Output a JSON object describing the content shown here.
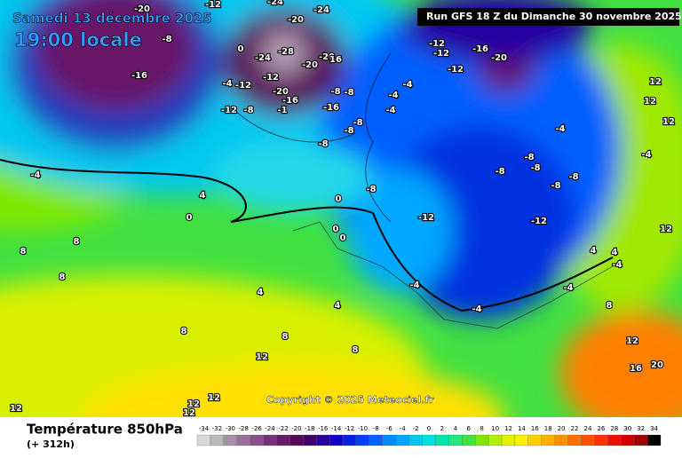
{
  "header": {
    "date": "Samedi 13 décembre 2025",
    "time": "19:00 locale",
    "run": "Run GFS 18 Z du Dimanche 30 novembre 2025"
  },
  "copyright": "Copyright © 2025 Meteociel.fr",
  "footer": {
    "title": "Température 850hPa",
    "lead": "(+ 312h)"
  },
  "map": {
    "labels": [
      -20,
      -12,
      -24,
      -20,
      -24,
      -8,
      -16,
      0,
      -24,
      -28,
      -20,
      -20,
      16,
      -12,
      -20,
      -16,
      -12,
      -4,
      -12,
      -8,
      -1,
      -16,
      -8,
      -8,
      -4,
      -4,
      -8,
      -8,
      -8,
      -4,
      -12,
      -12,
      -16,
      -20,
      -12,
      -4,
      4,
      0,
      0,
      0,
      0,
      -8,
      -12,
      -12,
      -8,
      -8,
      -8,
      -8,
      -8,
      -4,
      -4,
      12,
      12,
      12,
      4,
      -4,
      -4,
      4,
      4,
      -4,
      8,
      8,
      8,
      8,
      8,
      8,
      8,
      12,
      12,
      16,
      20,
      12,
      12,
      12,
      12,
      12,
      -4,
      4
    ]
  },
  "legend": {
    "values": [
      -34,
      -32,
      -30,
      -28,
      -26,
      -24,
      -22,
      -20,
      -18,
      -16,
      -14,
      -12,
      -10,
      -8,
      -6,
      -4,
      -2,
      0,
      2,
      4,
      6,
      8,
      10,
      12,
      14,
      16,
      18,
      20,
      22,
      24,
      26,
      28,
      30,
      32,
      34
    ],
    "colors": [
      "#d8d8d8",
      "#b8b8b8",
      "#a890a8",
      "#987098",
      "#885088",
      "#783078",
      "#681868",
      "#580858",
      "#400070",
      "#2800a0",
      "#1000c8",
      "#0020e0",
      "#0040f8",
      "#0060ff",
      "#0088ff",
      "#00a8ff",
      "#00c8f0",
      "#00e0e0",
      "#00e8b0",
      "#20e880",
      "#40e040",
      "#80e800",
      "#b0f000",
      "#e0f000",
      "#fff000",
      "#ffd000",
      "#ffb000",
      "#ff9000",
      "#ff7000",
      "#ff5000",
      "#ff3000",
      "#f01000",
      "#d00000",
      "#a00000",
      "#000000"
    ]
  }
}
